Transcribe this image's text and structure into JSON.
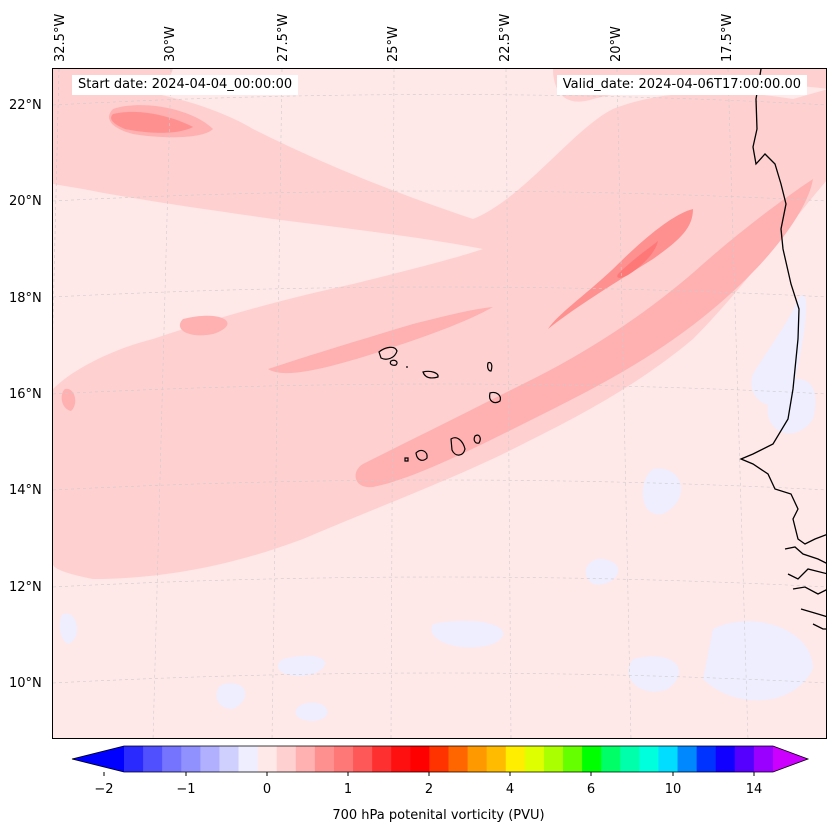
{
  "header": {
    "start_date": "Start date: 2024-04-04_00:00:00",
    "valid_date": "Valid_date: 2024-04-06T17:00:00.00"
  },
  "axes": {
    "lon_labels": [
      "32.5°W",
      "30°W",
      "27.5°W",
      "25°W",
      "22.5°W",
      "20°W",
      "17.5°W"
    ],
    "lat_labels": [
      "22°N",
      "20°N",
      "18°N",
      "16°N",
      "14°N",
      "12°N",
      "10°N"
    ]
  },
  "colorbar": {
    "title": "700 hPa potenital vorticity (PVU)",
    "tick_labels": [
      "−2",
      "−1",
      "0",
      "1",
      "2",
      "4",
      "6",
      "10",
      "14"
    ],
    "colors": [
      "#0000ff",
      "#2a2aff",
      "#5050ff",
      "#7474ff",
      "#9090ff",
      "#b0b0ff",
      "#d0d0ff",
      "#eeeeff",
      "#ffe8e8",
      "#ffd0d0",
      "#ffb0b0",
      "#ff9090",
      "#ff7878",
      "#ff5858",
      "#ff3030",
      "#ff1010",
      "#ff0000",
      "#ff3300",
      "#ff6600",
      "#ff9900",
      "#ffbb00",
      "#ffee00",
      "#ddff00",
      "#aaff00",
      "#66ff00",
      "#00ff00",
      "#00ff66",
      "#00ffaa",
      "#00ffdd",
      "#00ddff",
      "#0088ff",
      "#0033ff",
      "#1100ff",
      "#5500ff",
      "#9900ff",
      "#cc00ff"
    ]
  },
  "chart_data": {
    "type": "map",
    "title": "700 hPa potenital vorticity (PVU)",
    "start_date": "2024-04-04_00:00:00",
    "valid_date": "2024-04-06T17:00:00.00",
    "lon_range": [
      -33,
      -15
    ],
    "lat_range": [
      9,
      22.7
    ],
    "colorbar_ticks": [
      -2,
      -1,
      0,
      1,
      2,
      4,
      6,
      10,
      14
    ],
    "features": [
      "Cape Verde islands",
      "West African coastline"
    ]
  }
}
